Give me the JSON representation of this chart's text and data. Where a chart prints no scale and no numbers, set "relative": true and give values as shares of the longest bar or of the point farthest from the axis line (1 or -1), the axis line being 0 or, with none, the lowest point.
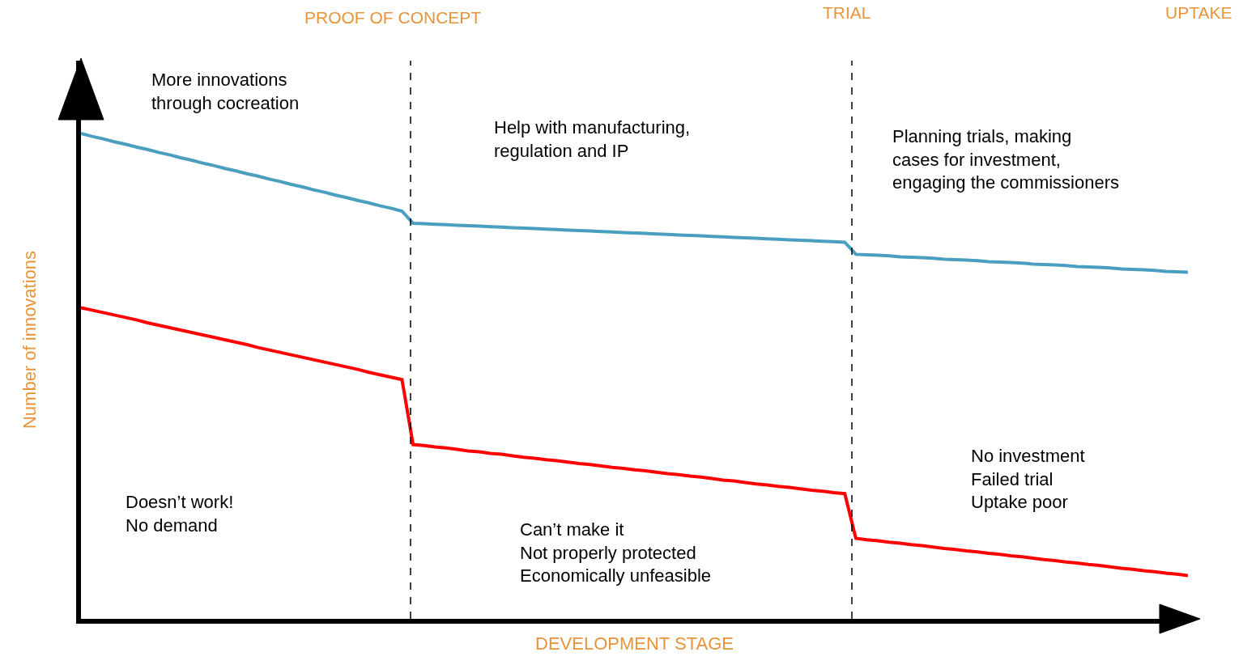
{
  "chart_data": {
    "type": "line",
    "relative": true,
    "xlabel": "DEVELOPMENT STAGE",
    "ylabel": "Number of innovations",
    "categories": [
      null,
      null,
      null,
      null,
      null,
      null,
      null,
      null,
      null,
      null,
      null,
      null,
      null,
      null,
      null,
      null,
      null,
      null,
      null,
      null,
      null,
      null,
      null,
      null,
      null,
      null,
      null,
      null,
      null,
      null,
      null,
      null,
      null,
      null,
      null,
      null,
      null,
      null,
      null,
      null,
      null,
      null,
      null,
      null,
      null,
      null,
      null,
      null,
      null,
      null,
      null,
      null,
      null,
      null,
      null,
      null,
      null,
      null,
      null,
      null,
      null,
      null,
      null,
      null,
      null,
      null,
      null,
      null,
      null,
      null,
      null,
      null,
      null,
      null,
      null,
      null,
      null,
      null,
      null,
      null,
      null,
      null,
      null,
      null,
      null,
      null,
      null,
      null,
      null,
      null,
      null,
      null,
      null,
      null,
      null,
      null,
      null,
      null,
      null,
      null,
      null
    ],
    "series": [
      {
        "color": "#4a9fc0",
        "values": [
          1.0,
          0.994,
          0.989,
          0.983,
          0.978,
          0.972,
          0.967,
          0.961,
          0.956,
          0.95,
          0.945,
          0.939,
          0.934,
          0.928,
          0.923,
          0.917,
          0.912,
          0.906,
          0.901,
          0.895,
          0.89,
          0.884,
          0.879,
          0.873,
          0.868,
          0.862,
          0.857,
          0.851,
          0.846,
          0.84,
          0.815,
          0.814,
          0.813,
          0.812,
          0.811,
          0.81,
          0.809,
          0.808,
          0.807,
          0.806,
          0.805,
          0.804,
          0.803,
          0.802,
          0.801,
          0.8,
          0.799,
          0.798,
          0.797,
          0.796,
          0.795,
          0.794,
          0.793,
          0.792,
          0.791,
          0.79,
          0.789,
          0.788,
          0.787,
          0.786,
          0.785,
          0.784,
          0.783,
          0.782,
          0.781,
          0.78,
          0.779,
          0.778,
          0.777,
          0.776,
          0.751,
          0.75,
          0.749,
          0.748,
          0.746,
          0.745,
          0.744,
          0.743,
          0.741,
          0.74,
          0.739,
          0.738,
          0.736,
          0.735,
          0.734,
          0.733,
          0.731,
          0.73,
          0.729,
          0.728,
          0.726,
          0.725,
          0.724,
          0.723,
          0.721,
          0.72,
          0.719,
          0.718,
          0.716,
          0.715,
          0.714
        ]
      },
      {
        "color": "#ff0000",
        "values": [
          0.641,
          0.636,
          0.631,
          0.626,
          0.621,
          0.616,
          0.61,
          0.605,
          0.6,
          0.595,
          0.59,
          0.585,
          0.58,
          0.575,
          0.57,
          0.565,
          0.559,
          0.554,
          0.549,
          0.544,
          0.539,
          0.534,
          0.529,
          0.524,
          0.519,
          0.514,
          0.508,
          0.503,
          0.498,
          0.493,
          0.359,
          0.357,
          0.354,
          0.352,
          0.349,
          0.346,
          0.344,
          0.341,
          0.339,
          0.336,
          0.333,
          0.331,
          0.328,
          0.326,
          0.323,
          0.32,
          0.318,
          0.315,
          0.312,
          0.31,
          0.307,
          0.305,
          0.302,
          0.299,
          0.297,
          0.294,
          0.292,
          0.289,
          0.286,
          0.284,
          0.281,
          0.278,
          0.276,
          0.273,
          0.271,
          0.268,
          0.265,
          0.263,
          0.26,
          0.258,
          0.166,
          0.163,
          0.161,
          0.158,
          0.156,
          0.153,
          0.151,
          0.148,
          0.145,
          0.143,
          0.14,
          0.138,
          0.135,
          0.133,
          0.13,
          0.128,
          0.125,
          0.122,
          0.12,
          0.117,
          0.115,
          0.112,
          0.11,
          0.107,
          0.104,
          0.102,
          0.099,
          0.097,
          0.094,
          0.092,
          0.089
        ]
      }
    ],
    "annotations": [
      "PROOF OF CONCEPT",
      "TRIAL",
      "UPTAKE",
      "More innovations\nthrough cocreation",
      "Help with manufacturing,\nregulation and IP",
      "Planning trials, making\ncases for investment,\nengaging the commissioners",
      "Doesn’t work!\nNo demand",
      "Can’t make it\nNot properly protected\nEconomically unfeasible",
      "No investment\nFailed trial\nUptake poor"
    ],
    "marker": "none",
    "line_style": "solid"
  }
}
